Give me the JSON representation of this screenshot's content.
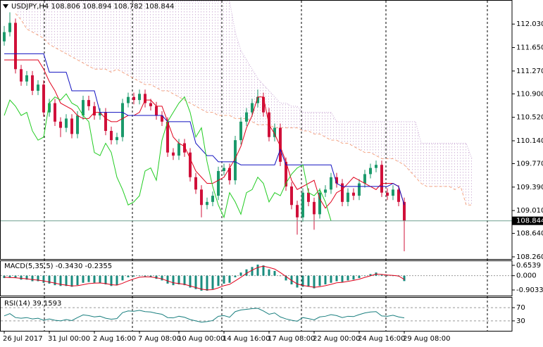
{
  "chart_data": [
    {
      "type": "candlestick",
      "title": "USDJPY,H4  108.806 108.894 108.782 108.844",
      "up_color": "#1b9a6b",
      "down_color": "#d0103a",
      "price_line_color": "#6f9f8f",
      "open": [
        111.75,
        111.9,
        112.05,
        111.3,
        111.1,
        111.2,
        110.95,
        111.05,
        110.6,
        110.75,
        110.45,
        110.35,
        110.5,
        110.25,
        110.55,
        110.8,
        110.7,
        110.55,
        110.6,
        110.3,
        110.15,
        110.2,
        110.75,
        110.85,
        110.8,
        110.9,
        110.75,
        110.7,
        110.55,
        110.45,
        109.95,
        109.9,
        110.1,
        109.95,
        109.55,
        109.35,
        109.1,
        109.15,
        109.25,
        109.65,
        109.7,
        109.5,
        110.15,
        110.45,
        110.6,
        110.75,
        110.85,
        110.6,
        110.2,
        110.35,
        109.8,
        109.4,
        109.1,
        108.9,
        109.3,
        109.15,
        108.95,
        109.3,
        109.35,
        109.55,
        109.45,
        109.15,
        109.3,
        109.25,
        109.45,
        109.6,
        109.7,
        109.75,
        109.3,
        109.25,
        109.35,
        109.15
      ],
      "high": [
        112.0,
        112.22,
        112.12,
        111.37,
        111.27,
        111.27,
        111.12,
        111.12,
        110.82,
        110.82,
        110.52,
        110.57,
        110.57,
        110.62,
        110.87,
        110.87,
        110.77,
        110.67,
        110.67,
        110.37,
        110.27,
        110.82,
        110.92,
        110.92,
        110.97,
        110.97,
        110.82,
        110.77,
        110.62,
        110.52,
        110.02,
        110.17,
        110.17,
        110.02,
        109.62,
        109.42,
        109.22,
        109.32,
        109.72,
        109.77,
        109.77,
        110.22,
        110.52,
        110.67,
        110.82,
        110.97,
        110.92,
        110.67,
        110.42,
        110.42,
        109.87,
        109.47,
        109.17,
        109.37,
        109.37,
        109.22,
        109.37,
        109.42,
        109.62,
        109.62,
        109.52,
        109.37,
        109.37,
        109.52,
        109.67,
        109.77,
        109.82,
        109.82,
        109.37,
        109.42,
        109.42,
        109.22
      ],
      "low": [
        111.68,
        111.83,
        111.23,
        111.03,
        111.03,
        110.88,
        110.88,
        110.53,
        110.53,
        110.38,
        110.2,
        110.28,
        110.18,
        110.18,
        110.48,
        110.63,
        110.48,
        110.48,
        110.23,
        110.08,
        110.08,
        110.13,
        110.68,
        110.73,
        110.73,
        110.68,
        110.63,
        110.48,
        110.38,
        109.88,
        109.83,
        109.83,
        109.88,
        109.48,
        109.28,
        108.9,
        109.03,
        109.08,
        109.18,
        109.58,
        109.43,
        109.43,
        110.08,
        110.38,
        110.53,
        110.68,
        110.53,
        110.13,
        110.13,
        109.73,
        109.33,
        109.03,
        108.62,
        108.83,
        109.08,
        108.7,
        108.88,
        109.23,
        109.28,
        109.38,
        109.08,
        109.08,
        109.18,
        109.18,
        109.38,
        109.53,
        109.63,
        109.23,
        109.18,
        109.18,
        109.08,
        108.35
      ],
      "close": [
        111.9,
        112.05,
        111.3,
        111.1,
        111.2,
        110.95,
        111.05,
        110.6,
        110.75,
        110.45,
        110.35,
        110.5,
        110.25,
        110.55,
        110.8,
        110.7,
        110.55,
        110.6,
        110.3,
        110.15,
        110.2,
        110.75,
        110.85,
        110.8,
        110.9,
        110.75,
        110.7,
        110.55,
        110.45,
        109.95,
        109.9,
        110.1,
        109.95,
        109.55,
        109.35,
        109.1,
        109.15,
        109.25,
        109.65,
        109.7,
        109.5,
        110.15,
        110.45,
        110.6,
        110.75,
        110.85,
        110.6,
        110.2,
        110.35,
        109.8,
        109.4,
        109.1,
        108.9,
        109.3,
        109.15,
        108.95,
        109.3,
        109.35,
        109.55,
        109.45,
        109.15,
        109.3,
        109.25,
        109.45,
        109.6,
        109.7,
        109.75,
        109.3,
        109.25,
        109.35,
        109.15,
        108.844
      ],
      "cloud": {
        "fill": "url(#hatch)",
        "upper": {
          "color": "#c7a6d4",
          "style": "dotted",
          "values": [
            null,
            null,
            112.4,
            112.4,
            112.4,
            112.4,
            112.4,
            112.4,
            112.4,
            112.4,
            112.4,
            112.4,
            112.4,
            112.4,
            112.4,
            112.4,
            112.4,
            112.4,
            112.4,
            112.4,
            112.4,
            112.4,
            112.4,
            112.4,
            112.4,
            112.4,
            112.4,
            112.4,
            112.4,
            112.4,
            112.4,
            112.4,
            112.4,
            112.4,
            112.4,
            112.4,
            112.4,
            112.4,
            112.4,
            112.4,
            112.4,
            111.9,
            111.6,
            111.45,
            111.3,
            111.15,
            111.05,
            110.95,
            110.85,
            110.75,
            110.75,
            110.7,
            110.7,
            110.6,
            110.6,
            110.6,
            110.6,
            110.6,
            110.6,
            110.45,
            110.45,
            110.45,
            110.45,
            110.45,
            110.45,
            110.45,
            110.45,
            110.45,
            110.45,
            110.45,
            110.45,
            110.45,
            110.45,
            110.45,
            110.1,
            110.1,
            110.1,
            110.1,
            110.1,
            110.1,
            110.1,
            110.1,
            110.1,
            109.85,
            null
          ]
        },
        "lower": {
          "color": "#f4a582",
          "style": "dashed",
          "values": [
            null,
            null,
            112.2,
            112.1,
            111.95,
            111.9,
            111.85,
            111.8,
            111.7,
            111.65,
            111.6,
            111.55,
            111.5,
            111.45,
            111.4,
            111.35,
            111.3,
            111.3,
            111.3,
            111.25,
            111.3,
            111.25,
            111.2,
            111.15,
            111.1,
            111.05,
            111.05,
            111.0,
            110.95,
            110.95,
            110.9,
            110.85,
            110.8,
            110.75,
            110.7,
            110.65,
            110.6,
            110.6,
            110.55,
            110.55,
            110.55,
            110.5,
            110.5,
            110.5,
            110.45,
            110.4,
            110.4,
            110.4,
            110.35,
            110.35,
            110.35,
            110.35,
            110.35,
            110.3,
            110.3,
            110.25,
            110.25,
            110.2,
            110.15,
            110.15,
            110.1,
            110.1,
            110.05,
            110.0,
            109.95,
            109.95,
            109.9,
            109.85,
            109.85,
            109.85,
            109.8,
            109.75,
            109.65,
            109.55,
            109.45,
            109.4,
            109.4,
            109.4,
            109.4,
            109.4,
            109.35,
            109.4,
            109.1,
            109.1,
            null
          ]
        }
      },
      "lines": [
        {
          "color": "#e0001b",
          "values": [
            111.45,
            111.45,
            111.45,
            111.45,
            111.45,
            111.45,
            111.45,
            111.3,
            111.1,
            110.95,
            110.75,
            110.7,
            110.65,
            110.55,
            110.5,
            110.5,
            110.6,
            110.6,
            110.5,
            110.45,
            110.45,
            110.5,
            110.55,
            110.55,
            110.6,
            110.8,
            110.8,
            110.7,
            110.7,
            110.45,
            110.2,
            110.1,
            110.05,
            109.85,
            109.65,
            109.55,
            109.45,
            109.45,
            109.5,
            109.55,
            109.7,
            109.85,
            110.05,
            110.35,
            110.55,
            110.85,
            110.85,
            110.4,
            110.25,
            110.05,
            109.8,
            109.5,
            109.35,
            109.4,
            109.45,
            109.5,
            109.2,
            109.05,
            109.15,
            109.3,
            109.35,
            109.45,
            109.55,
            109.5,
            109.45,
            109.4,
            109.35,
            109.45,
            109.45,
            109.45,
            109.4,
            109.1
          ]
        },
        {
          "color": "#1010c0",
          "values": [
            111.55,
            111.55,
            111.55,
            111.55,
            111.55,
            111.55,
            111.55,
            111.55,
            111.25,
            111.25,
            111.25,
            111.25,
            110.95,
            110.95,
            110.95,
            110.95,
            110.95,
            110.6,
            110.6,
            110.6,
            110.6,
            110.6,
            110.55,
            110.55,
            110.55,
            110.55,
            110.55,
            110.55,
            110.55,
            110.45,
            110.45,
            110.45,
            110.45,
            110.45,
            110.1,
            110.0,
            109.9,
            109.9,
            109.8,
            109.8,
            109.8,
            109.8,
            109.75,
            109.75,
            109.75,
            109.75,
            109.75,
            109.75,
            109.75,
            110.0,
            109.75,
            109.75,
            109.75,
            109.75,
            109.75,
            109.75,
            109.75,
            109.75,
            109.75,
            109.45,
            109.4,
            109.4,
            109.4,
            109.4,
            109.4,
            109.4,
            109.4,
            109.4,
            109.4,
            109.45,
            109.4,
            109.1
          ]
        },
        {
          "color": "#22cc22",
          "values": [
            110.55,
            110.8,
            110.7,
            110.55,
            110.6,
            110.3,
            110.15,
            110.2,
            110.75,
            110.85,
            110.8,
            110.9,
            110.75,
            110.7,
            110.55,
            110.45,
            109.95,
            109.9,
            110.1,
            109.95,
            109.55,
            109.35,
            109.1,
            109.15,
            109.25,
            109.65,
            109.7,
            109.5,
            110.15,
            110.45,
            110.6,
            110.75,
            110.85,
            110.6,
            110.2,
            110.35,
            109.8,
            109.4,
            109.1,
            108.9,
            109.3,
            109.15,
            108.95,
            109.3,
            109.35,
            109.55,
            109.45,
            109.15,
            109.3,
            109.25,
            109.45,
            109.6,
            109.7,
            109.75,
            109.3,
            109.25,
            109.35,
            109.15,
            108.844,
            null,
            null,
            null,
            null,
            null,
            null,
            null,
            null,
            null,
            null,
            null,
            null,
            null
          ]
        }
      ],
      "ylim": [
        108.225,
        112.42
      ],
      "yticks": [
        {
          "value": 112.03,
          "label": "112.030"
        },
        {
          "value": 111.65,
          "label": "111.650"
        },
        {
          "value": 111.27,
          "label": "111.270"
        },
        {
          "value": 110.9,
          "label": "110.900"
        },
        {
          "value": 110.52,
          "label": "110.520"
        },
        {
          "value": 110.14,
          "label": "110.140"
        },
        {
          "value": 109.77,
          "label": "109.770"
        },
        {
          "value": 109.39,
          "label": "109.390"
        },
        {
          "value": 109.01,
          "label": "109.010"
        },
        {
          "value": 108.64,
          "label": "108.640"
        },
        {
          "value": 108.26,
          "label": "108.260"
        }
      ],
      "xticks": [
        {
          "value": 0,
          "label": "26 Jul 2017"
        },
        {
          "value": 8,
          "label": "31 Jul 00:00"
        },
        {
          "value": 16,
          "label": "2 Aug 16:00"
        },
        {
          "value": 24,
          "label": "7 Aug 08:00"
        },
        {
          "value": 31,
          "label": "10 Aug 00:00"
        },
        {
          "value": 39,
          "label": "14 Aug 16:00"
        },
        {
          "value": 47,
          "label": "17 Aug 08:00"
        },
        {
          "value": 55,
          "label": "22 Aug 00:00"
        },
        {
          "value": 63,
          "label": "24 Aug 16:00"
        },
        {
          "value": 71,
          "label": "29 Aug 08:00"
        }
      ]
    },
    {
      "type": "macd",
      "title": "MACD(5,35,5) -0.3430 -0.2355",
      "hist_color": "#1a8c7f",
      "signal_color": "#e0001b",
      "values": [
        -0.15,
        -0.1,
        -0.15,
        -0.25,
        -0.25,
        -0.35,
        -0.35,
        -0.45,
        -0.5,
        -0.6,
        -0.65,
        -0.65,
        -0.7,
        -0.6,
        -0.45,
        -0.4,
        -0.45,
        -0.45,
        -0.55,
        -0.65,
        -0.6,
        -0.3,
        -0.1,
        -0.05,
        0.0,
        -0.05,
        -0.1,
        -0.2,
        -0.3,
        -0.5,
        -0.6,
        -0.55,
        -0.6,
        -0.75,
        -0.85,
        -0.95,
        -0.95,
        -0.85,
        -0.65,
        -0.5,
        -0.45,
        -0.1,
        0.2,
        0.4,
        0.55,
        0.7,
        0.65,
        0.4,
        0.3,
        0.0,
        -0.3,
        -0.55,
        -0.75,
        -0.7,
        -0.7,
        -0.8,
        -0.65,
        -0.55,
        -0.45,
        -0.35,
        -0.4,
        -0.3,
        -0.25,
        -0.15,
        0.0,
        0.1,
        0.2,
        0.05,
        0.0,
        0.0,
        -0.05,
        -0.34
      ],
      "signal": [
        -0.1,
        -0.12,
        -0.13,
        -0.17,
        -0.2,
        -0.25,
        -0.28,
        -0.33,
        -0.4,
        -0.47,
        -0.55,
        -0.6,
        -0.65,
        -0.63,
        -0.57,
        -0.5,
        -0.47,
        -0.46,
        -0.5,
        -0.57,
        -0.6,
        -0.48,
        -0.33,
        -0.2,
        -0.1,
        -0.07,
        -0.08,
        -0.13,
        -0.2,
        -0.33,
        -0.45,
        -0.5,
        -0.55,
        -0.65,
        -0.75,
        -0.85,
        -0.9,
        -0.88,
        -0.77,
        -0.63,
        -0.55,
        -0.33,
        -0.1,
        0.15,
        0.35,
        0.52,
        0.6,
        0.52,
        0.42,
        0.2,
        -0.05,
        -0.3,
        -0.52,
        -0.62,
        -0.67,
        -0.73,
        -0.7,
        -0.63,
        -0.55,
        -0.45,
        -0.42,
        -0.36,
        -0.3,
        -0.22,
        -0.11,
        -0.01,
        0.1,
        0.08,
        0.04,
        0.02,
        -0.02,
        -0.24
      ],
      "ylim": [
        -1.26,
        0.92
      ],
      "yticks": [
        0.6539,
        {
          "value": 0,
          "label": "0.000"
        },
        -0.9033
      ],
      "grid": false
    },
    {
      "type": "rsi",
      "title": "RSI(14) 39.1593",
      "color": "#1a7f7f",
      "values": [
        45,
        52,
        40,
        38,
        40,
        36,
        38,
        32,
        36,
        32,
        30,
        34,
        31,
        40,
        48,
        46,
        42,
        44,
        38,
        35,
        37,
        55,
        60,
        59,
        62,
        58,
        57,
        53,
        50,
        40,
        39,
        44,
        41,
        34,
        30,
        26,
        28,
        31,
        44,
        46,
        41,
        58,
        63,
        65,
        67,
        68,
        60,
        50,
        54,
        42,
        36,
        32,
        29,
        40,
        37,
        33,
        42,
        44,
        49,
        46,
        40,
        44,
        43,
        49,
        54,
        57,
        58,
        45,
        44,
        47,
        42,
        39.16
      ],
      "ylim": [
        0,
        100
      ],
      "yticks": [
        70,
        30
      ],
      "grid": true
    }
  ]
}
